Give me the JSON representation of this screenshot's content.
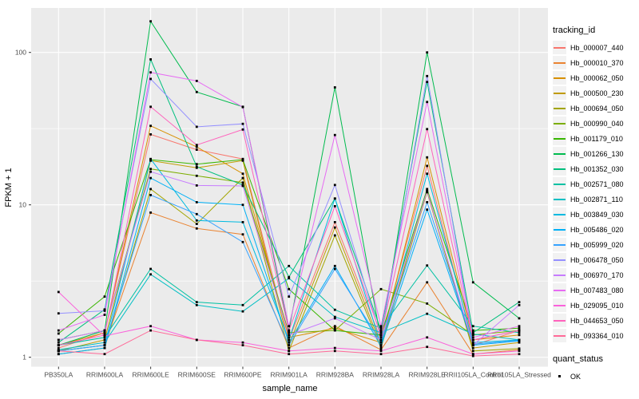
{
  "chart_data": {
    "type": "line",
    "title": "",
    "xlabel": "sample_name",
    "ylabel": "FPKM + 1",
    "y_scale": "log10",
    "y_tick_labels": [
      "1",
      "10",
      "100"
    ],
    "y_tick_values": [
      1,
      10,
      100
    ],
    "ylim": [
      1,
      186
    ],
    "grid": true,
    "legend_position": "right",
    "panel_bg": "#EBEBEB",
    "grid_color": "#FFFFFF",
    "tick_text_color": "#4D4D4D",
    "point_shape": "square",
    "point_color": "#000000",
    "categories": [
      "PB350LA",
      "RRIM600LA",
      "RRIM600LE",
      "RRIM600SE",
      "RRIM600PE",
      "RRIM901LA",
      "RRIM928BA",
      "RRIM928LA",
      "RRIM928LE",
      "RRII105LA_Control",
      "RRII105LA_Stressed"
    ],
    "series": [
      {
        "name": "Hb_000007_440",
        "color": "#F8766D",
        "values": [
          1.15,
          1.45,
          29,
          23,
          20,
          1.3,
          7.7,
          1.3,
          18,
          1.2,
          1.5
        ]
      },
      {
        "name": "Hb_000010_370",
        "color": "#EA8331",
        "values": [
          1.1,
          1.2,
          8.9,
          7.0,
          6.4,
          1.15,
          1.6,
          1.12,
          3.1,
          1.05,
          1.12
        ]
      },
      {
        "name": "Hb_000062_050",
        "color": "#D89000",
        "values": [
          1.2,
          1.45,
          33,
          24,
          16,
          1.35,
          1.55,
          1.25,
          20.5,
          1.3,
          1.4
        ]
      },
      {
        "name": "Hb_000500_230",
        "color": "#C09B00",
        "values": [
          1.1,
          1.3,
          19.5,
          17.5,
          19.5,
          1.2,
          7.1,
          1.2,
          12.1,
          1.15,
          1.25
        ]
      },
      {
        "name": "Hb_000694_050",
        "color": "#A3A500",
        "values": [
          1.05,
          1.15,
          12.7,
          7.5,
          15,
          1.1,
          6.3,
          1.15,
          12.4,
          1.1,
          1.14
        ]
      },
      {
        "name": "Hb_000990_040",
        "color": "#7CAE00",
        "values": [
          1.3,
          1.5,
          17.2,
          15.5,
          14,
          1.45,
          1.5,
          2.8,
          2.25,
          1.4,
          1.5
        ]
      },
      {
        "name": "Hb_001179_010",
        "color": "#39B600",
        "values": [
          1.43,
          2.5,
          19.8,
          18.5,
          19.8,
          2.8,
          1.5,
          1.4,
          12.7,
          1.5,
          1.55
        ]
      },
      {
        "name": "Hb_001266_130",
        "color": "#00BB4E",
        "values": [
          1.2,
          1.5,
          160,
          55,
          44,
          1.5,
          59,
          1.3,
          100,
          3.1,
          1.8
        ]
      },
      {
        "name": "Hb_001352_030",
        "color": "#00BF7D",
        "values": [
          1.25,
          2.06,
          90,
          17.8,
          13.5,
          3.36,
          11,
          1.5,
          64,
          1.45,
          2.3
        ]
      },
      {
        "name": "Hb_002571_080",
        "color": "#00C1A3",
        "values": [
          1.2,
          1.35,
          3.8,
          2.3,
          2.2,
          3.97,
          2.05,
          1.55,
          4.0,
          1.6,
          1.45
        ]
      },
      {
        "name": "Hb_002871_110",
        "color": "#00BFC4",
        "values": [
          1.12,
          1.25,
          3.5,
          2.2,
          2.0,
          3.3,
          1.84,
          1.45,
          1.93,
          1.42,
          1.3
        ]
      },
      {
        "name": "Hb_003849_030",
        "color": "#00BAE0",
        "values": [
          1.1,
          1.2,
          20,
          7.9,
          7.7,
          1.3,
          11,
          1.2,
          16,
          1.25,
          1.3
        ]
      },
      {
        "name": "Hb_005486_020",
        "color": "#00B0F6",
        "values": [
          1.05,
          1.15,
          15,
          10.4,
          10,
          1.25,
          3.97,
          1.18,
          9.3,
          1.2,
          1.28
        ]
      },
      {
        "name": "Hb_005999_020",
        "color": "#35A2FF",
        "values": [
          1.1,
          1.2,
          11.6,
          8.7,
          5.7,
          1.2,
          3.8,
          1.25,
          10.4,
          1.22,
          1.29
        ]
      },
      {
        "name": "Hb_006478_050",
        "color": "#9590FF",
        "values": [
          1.94,
          2.02,
          67,
          32.5,
          34,
          2.5,
          13.5,
          1.35,
          70,
          1.3,
          1.5
        ]
      },
      {
        "name": "Hb_006970_170",
        "color": "#C77CFF",
        "values": [
          1.3,
          1.5,
          16.5,
          13.4,
          13.3,
          1.4,
          1.8,
          1.3,
          12.3,
          1.2,
          2.2
        ]
      },
      {
        "name": "Hb_007483_080",
        "color": "#E76BF3",
        "values": [
          1.5,
          1.9,
          74,
          65,
          43.8,
          1.6,
          28.7,
          1.6,
          47.3,
          1.35,
          1.6
        ]
      },
      {
        "name": "Hb_029095_010",
        "color": "#FA62DB",
        "values": [
          2.68,
          1.38,
          1.6,
          1.3,
          1.25,
          1.1,
          1.15,
          1.1,
          1.35,
          1.05,
          1.1
        ]
      },
      {
        "name": "Hb_044653_050",
        "color": "#FF62BC",
        "values": [
          1.2,
          1.4,
          44,
          24.7,
          31.2,
          1.5,
          9.8,
          1.4,
          31.4,
          1.3,
          1.5
        ]
      },
      {
        "name": "Hb_093364_010",
        "color": "#FF6A98",
        "values": [
          1.1,
          1.05,
          1.5,
          1.3,
          1.2,
          1.05,
          1.1,
          1.05,
          1.17,
          1.02,
          1.05
        ]
      }
    ]
  },
  "legend": {
    "tracking_title": "tracking_id",
    "quant_title": "quant_status",
    "quant_items": [
      {
        "label": "OK"
      }
    ]
  }
}
